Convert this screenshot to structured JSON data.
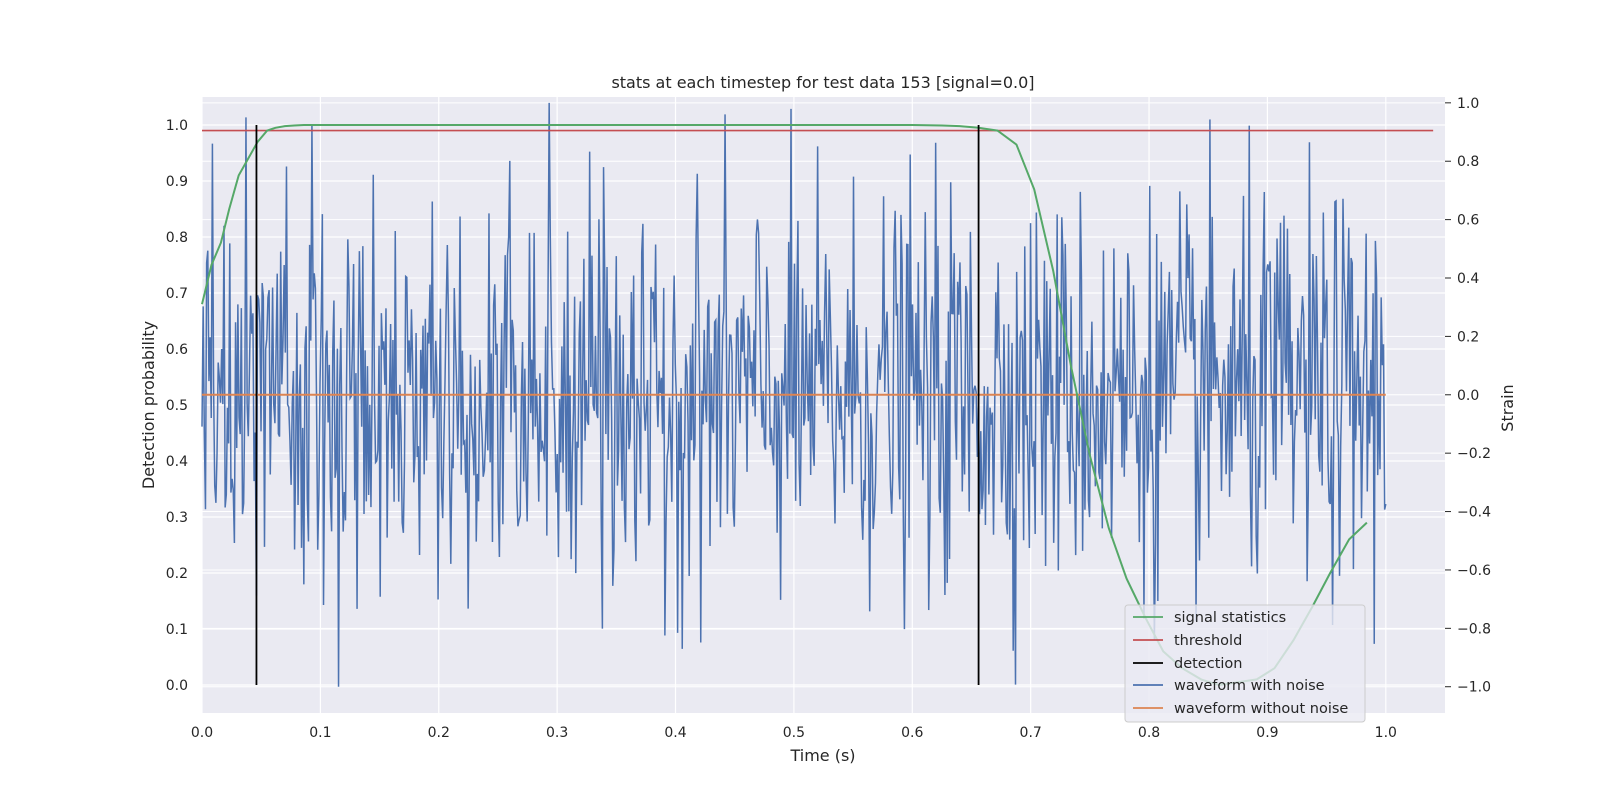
{
  "chart_data": {
    "type": "line",
    "title": "stats at each timestep for test data 153 [signal=0.0]",
    "xlabel": "Time (s)",
    "ylabel": "Detection probability",
    "ylabel_right": "Strain",
    "xlim": [
      0.0,
      1.05
    ],
    "ylim": [
      -0.05,
      1.05
    ],
    "ylim_right": [
      -1.09,
      1.02
    ],
    "xticks": [
      "0.0",
      "0.1",
      "0.2",
      "0.3",
      "0.4",
      "0.5",
      "0.6",
      "0.7",
      "0.8",
      "0.9",
      "1.0"
    ],
    "yticks": [
      "0.0",
      "0.1",
      "0.2",
      "0.3",
      "0.4",
      "0.5",
      "0.6",
      "0.7",
      "0.8",
      "0.9",
      "1.0"
    ],
    "yticks_right": [
      "−1.0",
      "−0.8",
      "−0.6",
      "−0.4",
      "−0.2",
      "0.0",
      "0.2",
      "0.4",
      "0.6",
      "0.8",
      "1.0"
    ],
    "grid": true,
    "legend_position": "lower-right",
    "series": [
      {
        "name": "signal statistics",
        "axis": "left",
        "color": "#55a868",
        "x": [
          0.0,
          0.008,
          0.016,
          0.023,
          0.031,
          0.039,
          0.047,
          0.055,
          0.062,
          0.07,
          0.078,
          0.086,
          0.1,
          0.2,
          0.3,
          0.4,
          0.5,
          0.6,
          0.625,
          0.64,
          0.656,
          0.672,
          0.688,
          0.703,
          0.719,
          0.734,
          0.75,
          0.766,
          0.781,
          0.797,
          0.812,
          0.828,
          0.844,
          0.859,
          0.875,
          0.891,
          0.906,
          0.922,
          0.938,
          0.953,
          0.969,
          0.984
        ],
        "y": [
          0.68,
          0.75,
          0.79,
          0.85,
          0.91,
          0.94,
          0.97,
          0.99,
          0.995,
          0.998,
          0.999,
          1.0,
          1.0,
          1.0,
          1.0,
          1.0,
          1.0,
          1.0,
          0.999,
          0.998,
          0.995,
          0.99,
          0.965,
          0.885,
          0.74,
          0.57,
          0.41,
          0.28,
          0.19,
          0.12,
          0.06,
          0.03,
          0.01,
          0.0,
          0.005,
          0.01,
          0.03,
          0.08,
          0.14,
          0.2,
          0.26,
          0.29
        ]
      },
      {
        "name": "threshold",
        "axis": "left",
        "color": "#c44e52",
        "x": [
          0.0,
          1.04
        ],
        "y": [
          0.99,
          0.99
        ]
      },
      {
        "name": "detection",
        "axis": "left",
        "color": "#000000",
        "segments": [
          {
            "x": 0.046,
            "y0": 0.0,
            "y1": 1.0
          },
          {
            "x": 0.656,
            "y0": 0.0,
            "y1": 1.0
          }
        ]
      },
      {
        "name": "waveform with noise",
        "axis": "right",
        "color": "#4c72b0",
        "points": 1024,
        "amplitude_range": [
          -1.0,
          1.0
        ]
      },
      {
        "name": "waveform without noise",
        "axis": "right",
        "color": "#dd8452",
        "x": [
          0.0,
          1.0
        ],
        "y": [
          0.0,
          0.0
        ]
      }
    ]
  }
}
